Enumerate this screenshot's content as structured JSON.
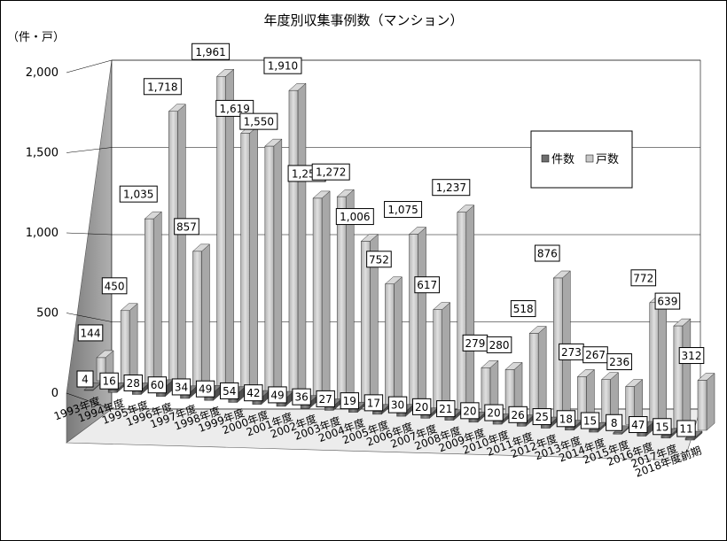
{
  "chart_data": {
    "type": "bar",
    "title": "年度別収集事例数（マンション）",
    "ylabel": "（件・戸）",
    "ylim": [
      0,
      2000
    ],
    "yticks": [
      "0",
      "500",
      "1,000",
      "1,500",
      "2,000"
    ],
    "grid": true,
    "legend_position": "right",
    "categories": [
      "1993年度",
      "1994年度",
      "1995年度",
      "1996年度",
      "1997年度",
      "1998年度",
      "1999年度",
      "2000年度",
      "2001年度",
      "2002年度",
      "2003年度",
      "2004年度",
      "2005年度",
      "2006年度",
      "2007年度",
      "2008年度",
      "2009年度",
      "2010年度",
      "2011年度",
      "2012年度",
      "2013年度",
      "2014年度",
      "2015年度",
      "2016年度",
      "2017年度",
      "2018年度前期"
    ],
    "series": [
      {
        "name": "件数",
        "color": "#6e6e6e",
        "values": [
          4,
          16,
          28,
          60,
          34,
          49,
          54,
          42,
          49,
          36,
          27,
          19,
          17,
          30,
          20,
          21,
          20,
          20,
          26,
          25,
          18,
          15,
          8,
          47,
          15,
          11
        ],
        "labels": [
          "4",
          "16",
          "28",
          "60",
          "34",
          "49",
          "54",
          "42",
          "49",
          "36",
          "27",
          "19",
          "17",
          "30",
          "20",
          "21",
          "20",
          "20",
          "26",
          "25",
          "18",
          "15",
          "8",
          "47",
          "15",
          "11"
        ]
      },
      {
        "name": "戸数",
        "color": "#c8c8c8",
        "values": [
          144,
          450,
          1035,
          1718,
          857,
          1961,
          1619,
          1550,
          1910,
          1250,
          1272,
          1006,
          752,
          1075,
          617,
          1237,
          279,
          280,
          518,
          876,
          273,
          267,
          236,
          772,
          639,
          312
        ],
        "labels": [
          "144",
          "450",
          "1,035",
          "1,718",
          "857",
          "1,961",
          "1,619",
          "1,550",
          "1,910",
          "1,250",
          "1,272",
          "1,006",
          "752",
          "1,075",
          "617",
          "1,237",
          "279",
          "280",
          "518",
          "876",
          "273",
          "267",
          "236",
          "772",
          "639",
          "312"
        ]
      }
    ]
  }
}
